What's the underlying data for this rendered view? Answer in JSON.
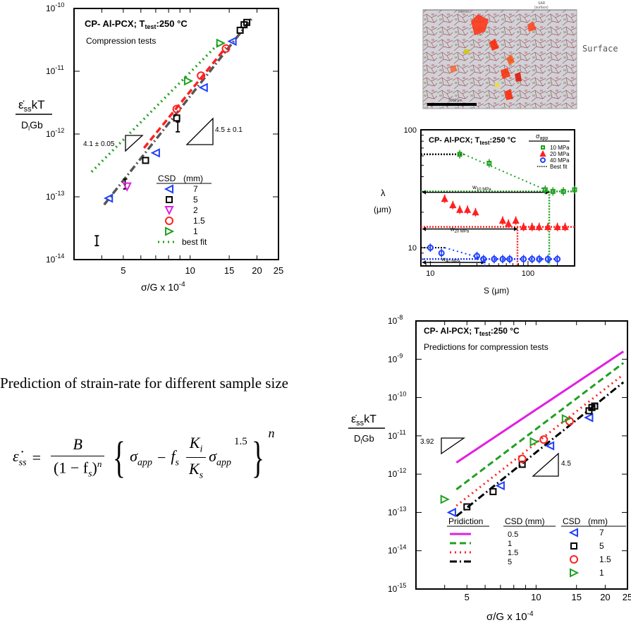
{
  "top_left_chart": {
    "title": "CP- Al-PCX; T",
    "title_sub": "test",
    "title_tail": ":250 °C",
    "subtitle": "Compression tests",
    "ylabel_num": "ε̇",
    "ylabel_num_sub": "ss",
    "ylabel_num_tail": "kT",
    "ylabel_den": "D",
    "ylabel_den_sub": "l",
    "ylabel_den_tail": "Gb",
    "xlabel": "σ/G x 10",
    "xlabel_sup": "-4",
    "x_ticks": [
      "5",
      "10",
      "15",
      "20",
      "25"
    ],
    "y_ticks": [
      {
        "base": "10",
        "exp": "-10"
      },
      {
        "base": "10",
        "exp": "-11"
      },
      {
        "base": "10",
        "exp": "-12"
      },
      {
        "base": "10",
        "exp": "-13"
      },
      {
        "base": "10",
        "exp": "-14"
      }
    ],
    "slope_left": "4.1 ± 0.05",
    "slope_right": "4.5 ± 0.1",
    "legend_header_csd": "CSD",
    "legend_header_unit": "(mm)",
    "legend": [
      {
        "label": "7",
        "marker": "triangle-left",
        "color": "#1f3fff"
      },
      {
        "label": "5",
        "marker": "square",
        "color": "#000000"
      },
      {
        "label": "2",
        "marker": "triangle-down",
        "color": "#e020e0"
      },
      {
        "label": "1.5",
        "marker": "circle",
        "color": "#ff2020"
      },
      {
        "label": "1",
        "marker": "triangle-right",
        "color": "#20a020"
      },
      {
        "label": "best fit",
        "marker": "dotted",
        "color": "#20a020"
      }
    ]
  },
  "micrograph": {
    "label_top_left": "interior",
    "label_top_right_1": "SAR",
    "label_top_right_2": "(surface)",
    "surface_label": "Surface",
    "scale_bar": "3000 μm"
  },
  "lambda_chart": {
    "title": "CP- Al-PCX; T",
    "title_sub": "test",
    "title_tail": ":250 °C",
    "legend_title": "σ",
    "legend_title_sub": "app",
    "legend": [
      {
        "label": "10 MPa",
        "color": "#20a020",
        "marker": "square"
      },
      {
        "label": "20 MPa",
        "color": "#ff2020",
        "marker": "triangle-up"
      },
      {
        "label": "40 MPa",
        "color": "#1f3fff",
        "marker": "circle"
      },
      {
        "label": "Best fit",
        "color": "#000000",
        "marker": "dotted"
      }
    ],
    "ylabel_1": "λ",
    "ylabel_2": "(μm)",
    "xlabel": "S (μm)",
    "x_ticks": [
      "10",
      "100"
    ],
    "y_ticks": [
      "100",
      "10"
    ],
    "w_labels": [
      {
        "base": "w",
        "sub": "10 MPa"
      },
      {
        "base": "w",
        "sub": "20 MPa"
      },
      {
        "base": "w",
        "sub": "40 MPa"
      }
    ]
  },
  "caption": "Prediction of strain-rate for different sample size",
  "formula": {
    "lhs": "ε̇",
    "lhs_sub": "ss",
    "eq": "=",
    "numerator": "B",
    "denominator": "(1 − f",
    "denominator_sub": "s",
    "denominator_tail": ")",
    "denominator_sup": "n",
    "sigma": "σ",
    "sigma_sub": "app",
    "minus": "−",
    "fs": "f",
    "fs_sub": "s",
    "k_num": "K",
    "k_num_sub": "i",
    "k_den": "K",
    "k_den_sub": "s",
    "sigma2": "σ",
    "sigma2_sub": "app",
    "power": "1.5",
    "outer_power": "n"
  },
  "bottom_chart": {
    "title": "CP- Al-PCX; T",
    "title_sub": "test",
    "title_tail": ":250 °C",
    "subtitle": "Predictions for compression tests",
    "ylabel_num": "ε̇",
    "ylabel_num_sub": "ss",
    "ylabel_num_tail": "kT",
    "ylabel_den": "D",
    "ylabel_den_sub": "l",
    "ylabel_den_tail": "Gb",
    "xlabel": "σ/G x 10",
    "xlabel_sup": "-4",
    "x_ticks": [
      "5",
      "10",
      "15",
      "20",
      "25"
    ],
    "y_ticks": [
      {
        "base": "10",
        "exp": "-8"
      },
      {
        "base": "10",
        "exp": "-9"
      },
      {
        "base": "10",
        "exp": "-10"
      },
      {
        "base": "10",
        "exp": "-11"
      },
      {
        "base": "10",
        "exp": "-12"
      },
      {
        "base": "10",
        "exp": "-13"
      },
      {
        "base": "10",
        "exp": "-14"
      },
      {
        "base": "10",
        "exp": "-15"
      }
    ],
    "slope_left": "3.92",
    "slope_right": "4.5",
    "legend_pred_header": "Pridiction",
    "legend_pred_csd_header": "CSD (mm)",
    "legend_csd_header": "CSD",
    "legend_csd_unit": "(mm)",
    "pred_legend": [
      {
        "label": "0.5",
        "color": "#e020e0",
        "dash": "solid"
      },
      {
        "label": "1",
        "color": "#20a020",
        "dash": "dashed"
      },
      {
        "label": "1.5",
        "color": "#ff2020",
        "dash": "dotted"
      },
      {
        "label": "5",
        "color": "#000000",
        "dash": "dashdot"
      }
    ],
    "marker_legend": [
      {
        "label": "7",
        "marker": "triangle-left",
        "color": "#1f3fff"
      },
      {
        "label": "5",
        "marker": "square",
        "color": "#000000"
      },
      {
        "label": "1.5",
        "marker": "circle",
        "color": "#ff2020"
      },
      {
        "label": "1",
        "marker": "triangle-right",
        "color": "#20a020"
      }
    ]
  },
  "chart_data": [
    {
      "type": "scatter",
      "title": "CP- Al-PCX; Ttest:250 °C",
      "subtitle": "Compression tests",
      "xlabel": "σ/G x 10^-4",
      "ylabel": "ε̇ss kT / Dl Gb",
      "x_scale": "log",
      "y_scale": "log",
      "xlim": [
        3,
        25
      ],
      "ylim": [
        1e-14,
        1e-10
      ],
      "series": [
        {
          "name": "7",
          "marker": "triangle-left",
          "color": "#1f3fff",
          "x": [
            4.3,
            7.0,
            11.5,
            15.5
          ],
          "y": [
            9.5e-14,
            5e-13,
            5.5e-12,
            3e-11
          ]
        },
        {
          "name": "5",
          "marker": "square",
          "color": "#000000",
          "x": [
            6.3,
            8.7,
            16.8,
            17.5,
            18.0
          ],
          "y": [
            3.8e-13,
            1.8e-12,
            4.5e-11,
            5.5e-11,
            6e-11
          ]
        },
        {
          "name": "2",
          "marker": "triangle-down",
          "color": "#e020e0",
          "x": [
            5.2
          ],
          "y": [
            1.45e-13
          ]
        },
        {
          "name": "1.5",
          "marker": "circle",
          "color": "#ff2020",
          "x": [
            8.7,
            11.2,
            14.5
          ],
          "y": [
            2.5e-12,
            8.5e-12,
            2.3e-11
          ]
        },
        {
          "name": "1",
          "marker": "triangle-right",
          "color": "#20a020",
          "x": [
            9.8,
            13.7
          ],
          "y": [
            7e-12,
            2.8e-11
          ]
        }
      ],
      "fit_lines": [
        {
          "color": "#20a020",
          "style": "dotted",
          "x": [
            3.6,
            13.5
          ],
          "y": [
            2.5e-13,
            2.8e-11
          ]
        },
        {
          "color": "#ff2020",
          "style": "dashed",
          "x": [
            6.2,
            14.5
          ],
          "y": [
            6e-13,
            2.4e-11
          ]
        },
        {
          "color": "#555555",
          "style": "dashdot",
          "x": [
            4.1,
            19.0
          ],
          "y": [
            7.5e-14,
            7e-11
          ]
        }
      ],
      "annotations": [
        "4.1 ± 0.05",
        "4.5 ± 0.1"
      ]
    },
    {
      "type": "line",
      "title": "CP- Al-PCX; Ttest:250 °C",
      "xlabel": "S (μm)",
      "ylabel": "λ (μm)",
      "x_scale": "log",
      "y_scale": "log",
      "xlim": [
        8,
        300
      ],
      "ylim": [
        7,
        100
      ],
      "series": [
        {
          "name": "10 MPa",
          "color": "#20a020",
          "marker": "square",
          "x": [
            20,
            40,
            150,
            180,
            230,
            300
          ],
          "y": [
            62,
            52,
            31,
            30,
            30,
            31
          ]
        },
        {
          "name": "20 MPa",
          "color": "#ff2020",
          "marker": "triangle-up",
          "x": [
            14,
            17,
            20,
            24,
            29,
            55,
            63,
            75,
            90,
            110,
            130,
            160,
            200,
            240
          ],
          "y": [
            26,
            23,
            21,
            21,
            20,
            17,
            16,
            17,
            15,
            15,
            15,
            15,
            15,
            15
          ]
        },
        {
          "name": "40 MPa",
          "color": "#1f3fff",
          "marker": "circle",
          "x": [
            10,
            13,
            30,
            35,
            45,
            55,
            65,
            90,
            110,
            130,
            160,
            200
          ],
          "y": [
            10,
            9,
            8.5,
            8,
            8,
            8,
            8,
            8,
            8,
            8,
            8,
            8
          ]
        }
      ],
      "annotations": [
        "w10 MPa",
        "w20 MPa",
        "w40 MPa"
      ]
    },
    {
      "type": "scatter",
      "title": "CP- Al-PCX; Ttest:250 °C",
      "subtitle": "Predictions for compression tests",
      "xlabel": "σ/G x 10^-4",
      "ylabel": "ε̇ss kT / Dl Gb",
      "x_scale": "log",
      "y_scale": "log",
      "xlim": [
        3,
        25
      ],
      "ylim": [
        1e-15,
        1e-08
      ],
      "prediction_lines": [
        {
          "name": "0.5",
          "color": "#e020e0",
          "style": "solid",
          "x": [
            4.5,
            24
          ],
          "y": [
            2e-12,
            1.6e-09
          ]
        },
        {
          "name": "1",
          "color": "#20a020",
          "style": "dashed",
          "x": [
            4.5,
            24
          ],
          "y": [
            4e-13,
            8e-10
          ]
        },
        {
          "name": "1.5",
          "color": "#ff2020",
          "style": "dotted",
          "x": [
            4.5,
            24
          ],
          "y": [
            1.5e-13,
            4e-10
          ]
        },
        {
          "name": "5",
          "color": "#000000",
          "style": "dashdot",
          "x": [
            4.5,
            24
          ],
          "y": [
            8e-14,
            2.5e-10
          ]
        }
      ],
      "series": [
        {
          "name": "7",
          "marker": "triangle-left",
          "color": "#1f3fff",
          "x": [
            4.3,
            7.0,
            11.5,
            17.0
          ],
          "y": [
            1e-13,
            5e-13,
            5.5e-12,
            3e-11
          ]
        },
        {
          "name": "5",
          "marker": "square",
          "color": "#000000",
          "x": [
            5.0,
            6.5,
            8.7,
            17.0,
            17.5,
            18.0
          ],
          "y": [
            1.4e-13,
            3.5e-13,
            1.8e-12,
            4.5e-11,
            5.5e-11,
            6e-11
          ]
        },
        {
          "name": "1.5",
          "marker": "circle",
          "color": "#ff2020",
          "x": [
            8.7,
            10.8,
            14.0
          ],
          "y": [
            2.5e-12,
            8e-12,
            2.4e-11
          ]
        },
        {
          "name": "1",
          "marker": "triangle-right",
          "color": "#20a020",
          "x": [
            4.0,
            9.8,
            13.5
          ],
          "y": [
            2.2e-13,
            7e-12,
            2.8e-11
          ]
        }
      ],
      "annotations": [
        "3.92",
        "4.5"
      ]
    }
  ]
}
